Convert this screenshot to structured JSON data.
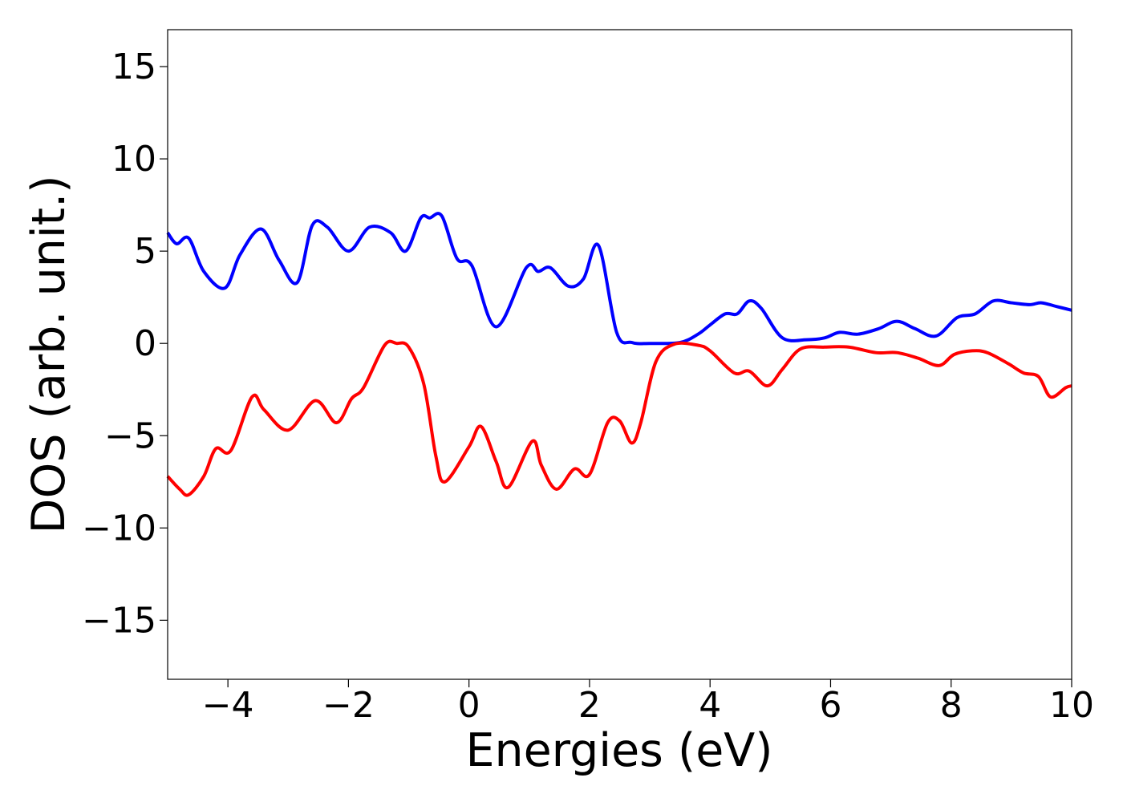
{
  "chart_data": {
    "type": "line",
    "xlabel": "Energies (eV)",
    "ylabel": "DOS (arb. unit.)",
    "xlim": [
      -5,
      10
    ],
    "ylim": [
      -18.2,
      17
    ],
    "xticks": [
      -4,
      -2,
      0,
      2,
      4,
      6,
      8,
      10
    ],
    "yticks": [
      -15,
      -10,
      -5,
      0,
      5,
      10,
      15
    ],
    "xtick_labels": [
      "−4",
      "−2",
      "0",
      "2",
      "4",
      "6",
      "8",
      "10"
    ],
    "ytick_labels": [
      "−15",
      "−10",
      "−5",
      "0",
      "5",
      "10",
      "15"
    ],
    "grid": false,
    "series": [
      {
        "color": "#0000ff",
        "points": [
          [
            -5.0,
            6.0
          ],
          [
            -4.85,
            5.4
          ],
          [
            -4.65,
            5.7
          ],
          [
            -4.4,
            3.9
          ],
          [
            -4.05,
            3.0
          ],
          [
            -3.8,
            4.8
          ],
          [
            -3.45,
            6.2
          ],
          [
            -3.15,
            4.5
          ],
          [
            -2.85,
            3.3
          ],
          [
            -2.6,
            6.4
          ],
          [
            -2.35,
            6.3
          ],
          [
            -2.0,
            5.0
          ],
          [
            -1.65,
            6.3
          ],
          [
            -1.3,
            6.0
          ],
          [
            -1.05,
            5.0
          ],
          [
            -0.8,
            6.8
          ],
          [
            -0.65,
            6.8
          ],
          [
            -0.45,
            6.9
          ],
          [
            -0.2,
            4.6
          ],
          [
            0.05,
            4.2
          ],
          [
            0.45,
            0.9
          ],
          [
            0.95,
            4.1
          ],
          [
            1.15,
            3.9
          ],
          [
            1.35,
            4.1
          ],
          [
            1.65,
            3.1
          ],
          [
            1.9,
            3.5
          ],
          [
            2.15,
            5.3
          ],
          [
            2.45,
            0.6
          ],
          [
            2.7,
            0.05
          ],
          [
            3.0,
            0.0
          ],
          [
            3.5,
            0.05
          ],
          [
            3.8,
            0.5
          ],
          [
            4.0,
            1.0
          ],
          [
            4.25,
            1.6
          ],
          [
            4.45,
            1.6
          ],
          [
            4.65,
            2.3
          ],
          [
            4.85,
            1.9
          ],
          [
            5.2,
            0.3
          ],
          [
            5.6,
            0.2
          ],
          [
            5.9,
            0.3
          ],
          [
            6.15,
            0.6
          ],
          [
            6.45,
            0.5
          ],
          [
            6.8,
            0.8
          ],
          [
            7.1,
            1.2
          ],
          [
            7.4,
            0.8
          ],
          [
            7.75,
            0.4
          ],
          [
            8.1,
            1.4
          ],
          [
            8.4,
            1.6
          ],
          [
            8.7,
            2.3
          ],
          [
            9.0,
            2.2
          ],
          [
            9.3,
            2.1
          ],
          [
            9.5,
            2.2
          ],
          [
            9.75,
            2.0
          ],
          [
            10.0,
            1.8
          ]
        ]
      },
      {
        "color": "#ff0000",
        "points": [
          [
            -5.0,
            -7.2
          ],
          [
            -4.8,
            -7.9
          ],
          [
            -4.65,
            -8.2
          ],
          [
            -4.4,
            -7.2
          ],
          [
            -4.2,
            -5.7
          ],
          [
            -3.95,
            -5.8
          ],
          [
            -3.6,
            -2.9
          ],
          [
            -3.4,
            -3.6
          ],
          [
            -3.0,
            -4.7
          ],
          [
            -2.55,
            -3.1
          ],
          [
            -2.2,
            -4.3
          ],
          [
            -1.95,
            -3.0
          ],
          [
            -1.75,
            -2.4
          ],
          [
            -1.4,
            -0.1
          ],
          [
            -1.2,
            0.0
          ],
          [
            -1.0,
            -0.2
          ],
          [
            -0.75,
            -2.2
          ],
          [
            -0.55,
            -6.1
          ],
          [
            -0.4,
            -7.5
          ],
          [
            0.0,
            -5.6
          ],
          [
            0.2,
            -4.5
          ],
          [
            0.45,
            -6.4
          ],
          [
            0.65,
            -7.8
          ],
          [
            1.05,
            -5.3
          ],
          [
            1.2,
            -6.6
          ],
          [
            1.45,
            -7.9
          ],
          [
            1.75,
            -6.8
          ],
          [
            2.0,
            -7.1
          ],
          [
            2.3,
            -4.3
          ],
          [
            2.5,
            -4.2
          ],
          [
            2.7,
            -5.4
          ],
          [
            2.85,
            -4.3
          ],
          [
            3.1,
            -1.0
          ],
          [
            3.4,
            -0.05
          ],
          [
            3.8,
            -0.1
          ],
          [
            4.0,
            -0.4
          ],
          [
            4.4,
            -1.6
          ],
          [
            4.65,
            -1.5
          ],
          [
            4.95,
            -2.3
          ],
          [
            5.2,
            -1.4
          ],
          [
            5.5,
            -0.3
          ],
          [
            5.9,
            -0.2
          ],
          [
            6.3,
            -0.2
          ],
          [
            6.75,
            -0.5
          ],
          [
            7.1,
            -0.5
          ],
          [
            7.45,
            -0.8
          ],
          [
            7.8,
            -1.2
          ],
          [
            8.05,
            -0.6
          ],
          [
            8.35,
            -0.4
          ],
          [
            8.6,
            -0.5
          ],
          [
            8.95,
            -1.1
          ],
          [
            9.2,
            -1.6
          ],
          [
            9.45,
            -1.8
          ],
          [
            9.65,
            -2.9
          ],
          [
            9.9,
            -2.4
          ],
          [
            10.0,
            -2.3
          ]
        ]
      }
    ]
  }
}
